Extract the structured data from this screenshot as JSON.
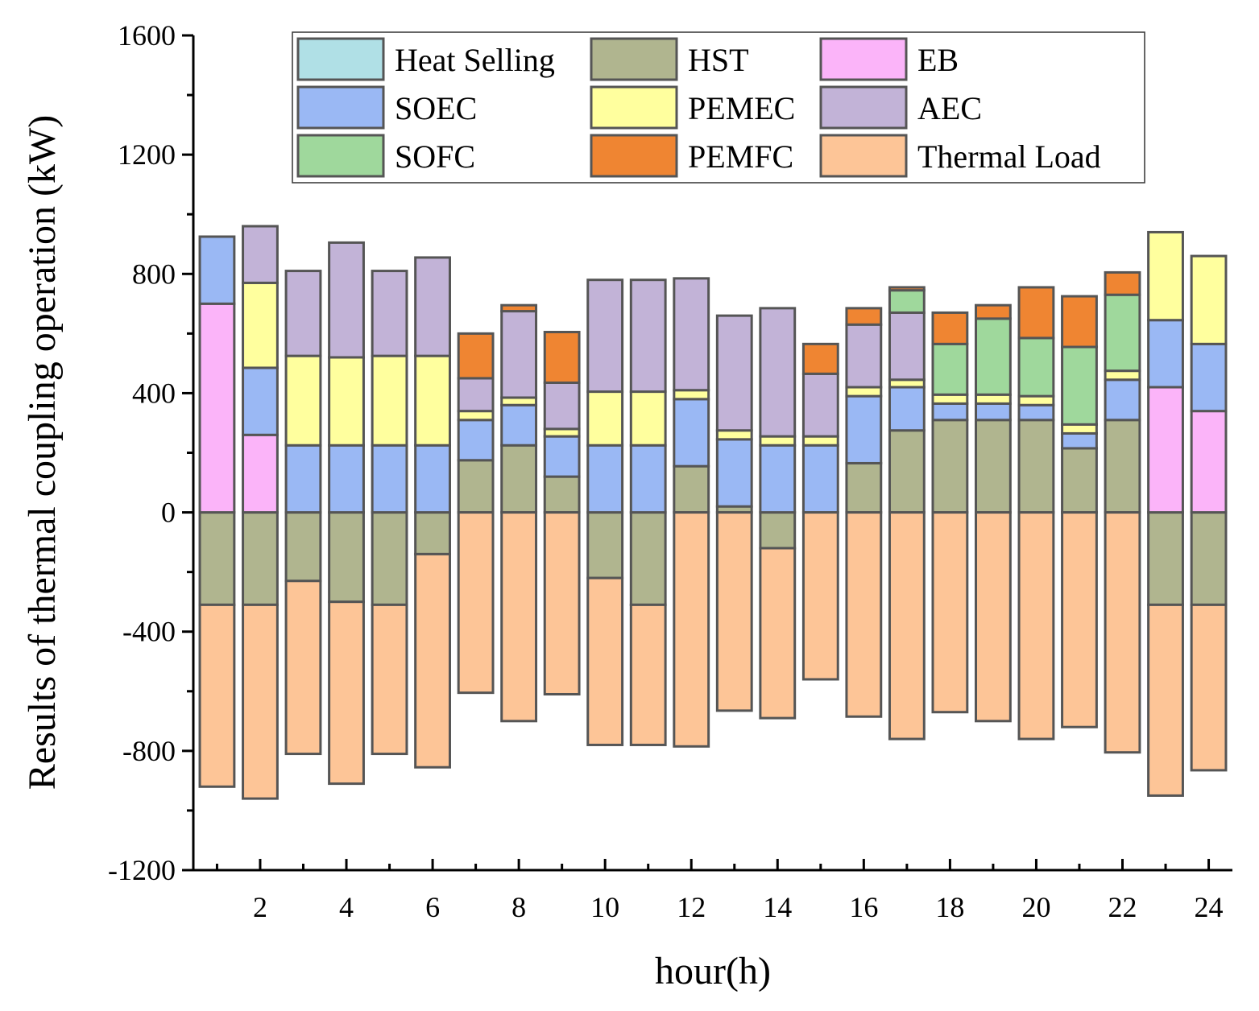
{
  "chart_data": {
    "type": "bar",
    "stacked": true,
    "xlabel": "hour(h)",
    "ylabel": "Results of  thermal coupling operation (kW)",
    "ylim": [
      -1200,
      1600
    ],
    "yticks": [
      -1200,
      -800,
      -400,
      0,
      400,
      800,
      1200,
      1600
    ],
    "categories": [
      1,
      2,
      3,
      4,
      5,
      6,
      7,
      8,
      9,
      10,
      11,
      12,
      13,
      14,
      15,
      16,
      17,
      18,
      19,
      20,
      21,
      22,
      23,
      24
    ],
    "xtick_labels": [
      "2",
      "4",
      "6",
      "8",
      "10",
      "12",
      "14",
      "16",
      "18",
      "20",
      "22",
      "24"
    ],
    "legend_position": "top",
    "series": [
      {
        "name": "Heat Selling",
        "color": "#b0e0e6",
        "values": [
          0,
          0,
          0,
          0,
          0,
          0,
          0,
          0,
          0,
          0,
          0,
          0,
          0,
          0,
          0,
          0,
          0,
          0,
          0,
          0,
          0,
          0,
          0,
          0
        ]
      },
      {
        "name": "HST",
        "color": "#b0b58f",
        "values": [
          -310,
          -310,
          -230,
          -300,
          -310,
          -140,
          175,
          225,
          120,
          -220,
          -310,
          155,
          20,
          -120,
          0,
          165,
          275,
          310,
          310,
          310,
          215,
          310,
          -310,
          -310
        ]
      },
      {
        "name": "EB",
        "color": "#fbb4f9",
        "values": [
          700,
          260,
          0,
          0,
          0,
          0,
          0,
          0,
          0,
          0,
          0,
          0,
          0,
          0,
          0,
          0,
          0,
          0,
          0,
          0,
          0,
          0,
          420,
          340
        ]
      },
      {
        "name": "SOEC",
        "color": "#9ab8f4",
        "values": [
          225,
          225,
          225,
          225,
          225,
          225,
          135,
          135,
          135,
          225,
          225,
          225,
          225,
          225,
          225,
          225,
          145,
          55,
          55,
          50,
          50,
          135,
          225,
          225
        ]
      },
      {
        "name": "PEMEC",
        "color": "#ffff9e",
        "values": [
          0,
          285,
          300,
          295,
          300,
          300,
          30,
          25,
          25,
          180,
          180,
          30,
          30,
          30,
          30,
          30,
          25,
          30,
          30,
          30,
          30,
          30,
          295,
          295
        ]
      },
      {
        "name": "AEC",
        "color": "#c2b3d7",
        "values": [
          0,
          190,
          285,
          385,
          285,
          330,
          110,
          290,
          155,
          375,
          375,
          375,
          385,
          430,
          210,
          210,
          225,
          0,
          0,
          0,
          0,
          0,
          0,
          0
        ]
      },
      {
        "name": "SOFC",
        "color": "#9fd89c",
        "values": [
          0,
          0,
          0,
          0,
          0,
          0,
          0,
          0,
          0,
          0,
          0,
          0,
          0,
          0,
          0,
          0,
          75,
          170,
          255,
          195,
          260,
          255,
          0,
          0
        ]
      },
      {
        "name": "PEMFC",
        "color": "#ef8532",
        "values": [
          0,
          0,
          0,
          0,
          0,
          0,
          150,
          20,
          170,
          0,
          0,
          0,
          0,
          0,
          100,
          55,
          10,
          105,
          45,
          170,
          170,
          75,
          0,
          0
        ]
      },
      {
        "name": "Thermal Load",
        "color": "#fdc597",
        "values": [
          -610,
          -650,
          -580,
          -610,
          -500,
          -715,
          -605,
          -700,
          -610,
          -560,
          -470,
          -785,
          -665,
          -570,
          -560,
          -685,
          -760,
          -670,
          -700,
          -760,
          -720,
          -805,
          -640,
          -555
        ]
      }
    ]
  }
}
